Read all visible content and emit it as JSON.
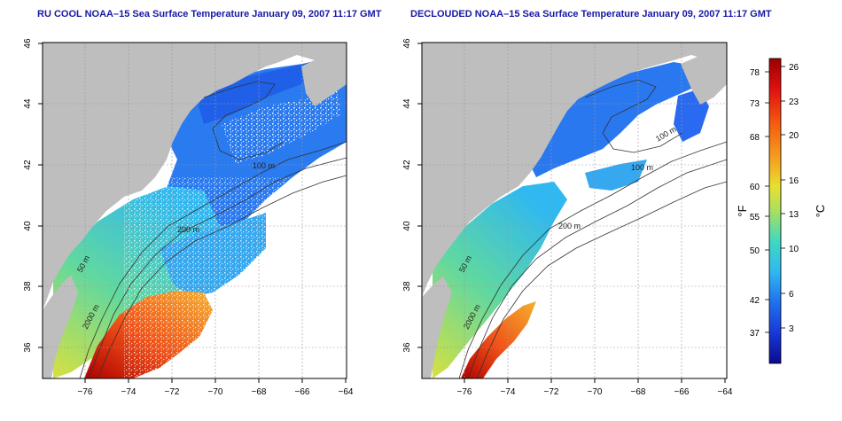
{
  "panels": [
    {
      "title": "RU COOL NOAA–15 Sea Surface Temperature January 09, 2007 11:17 GMT",
      "contour_labels": [
        "50 m",
        "100 m",
        "200 m",
        "2000 m"
      ]
    },
    {
      "title": "DECLOUDED NOAA–15 Sea Surface Temperature January 09, 2007 11:17 GMT",
      "contour_labels": [
        "50 m",
        "100 m",
        "100 m",
        "200 m",
        "2000 m"
      ]
    }
  ],
  "axes": {
    "x_ticks": [
      "−76",
      "−74",
      "−72",
      "−70",
      "−68",
      "−66",
      "−64"
    ],
    "y_ticks": [
      "36",
      "38",
      "40",
      "42",
      "44",
      "46"
    ]
  },
  "colorbar": {
    "fahrenheit_label": "°F",
    "celsius_label": "°C",
    "fahrenheit_ticks": [
      "78",
      "73",
      "68",
      "60",
      "55",
      "50",
      "42",
      "37"
    ],
    "celsius_ticks": [
      "26",
      "23",
      "20",
      "16",
      "13",
      "10",
      "6",
      "3"
    ],
    "colors": [
      "#9a0000",
      "#e01010",
      "#f56010",
      "#f5a020",
      "#e8e030",
      "#a8e060",
      "#40d8c0",
      "#30b8f0",
      "#2070f0",
      "#1838d8",
      "#0a0a90"
    ]
  },
  "colors": {
    "land": "#bebebe",
    "title": "#1818a8",
    "grid": "#999999"
  }
}
